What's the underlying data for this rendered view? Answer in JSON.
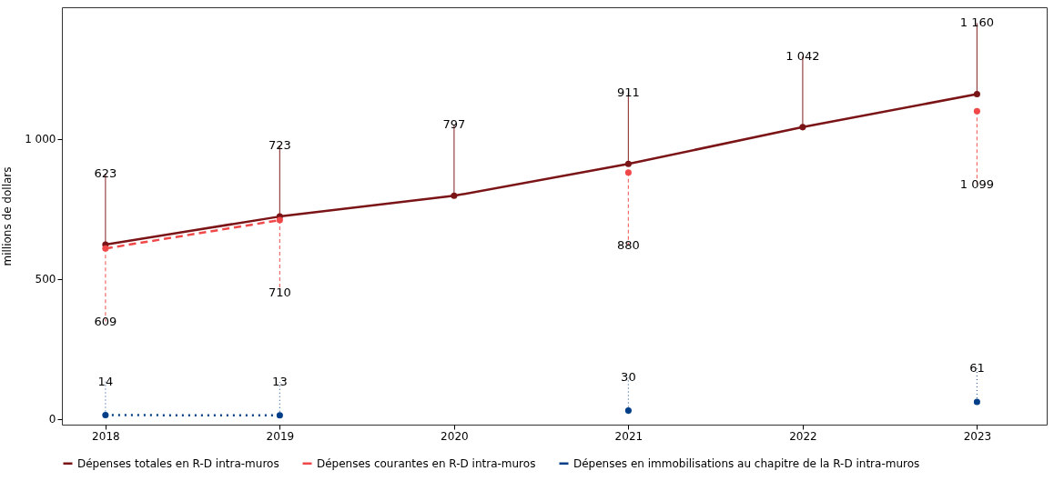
{
  "chart_data": {
    "type": "line",
    "ylabel": "millions de dollars",
    "x": [
      2018,
      2019,
      2020,
      2021,
      2022,
      2023
    ],
    "xlim": [
      2017.75,
      2023.4
    ],
    "xticks": [
      2018,
      2019,
      2020,
      2021,
      2022,
      2023
    ],
    "ylim": [
      -20,
      1470
    ],
    "yticks": [
      0,
      500,
      {
        "value": 1000,
        "label": "1 000"
      }
    ],
    "grid": false,
    "legend": "bottom",
    "marker": "circle",
    "series": [
      {
        "name": "Dépenses totales en R-D intra-muros",
        "color": "#7b1416",
        "line_style": "solid",
        "values": [
          623,
          723,
          797,
          911,
          1042,
          1160
        ],
        "value_labels": [
          "623",
          "723",
          "797",
          "911",
          "1 042",
          "1 160"
        ]
      },
      {
        "name": "Dépenses courantes en R-D intra-muros",
        "color": "#f04848",
        "line_style": "dashed",
        "values": [
          609,
          710,
          null,
          880,
          null,
          1099
        ],
        "value_labels": [
          "609",
          "710",
          null,
          "880",
          null,
          "1 099"
        ]
      },
      {
        "name": "Dépenses en immobilisations au chapitre de la R-D intra-muros",
        "color": "#003f87",
        "line_style": "dotted",
        "values": [
          14,
          13,
          null,
          30,
          null,
          61
        ],
        "value_labels": [
          "14",
          "13",
          null,
          "30",
          null,
          "61"
        ]
      }
    ]
  }
}
